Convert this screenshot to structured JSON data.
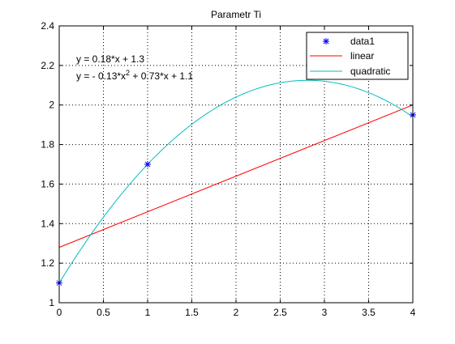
{
  "chart_data": {
    "type": "scatter",
    "title": "Parametr Ti",
    "xlabel": "",
    "ylabel": "",
    "xlim": [
      0,
      4
    ],
    "ylim": [
      1,
      2.4
    ],
    "x_ticks": [
      "0",
      "0.5",
      "1",
      "1.5",
      "2",
      "2.5",
      "3",
      "3.5",
      "4"
    ],
    "y_ticks": [
      "1",
      "1.2",
      "1.4",
      "1.6",
      "1.8",
      "2",
      "2.2",
      "2.4"
    ],
    "grid": true,
    "legend_position": "top-right",
    "series": [
      {
        "name": "data1",
        "kind": "markers",
        "marker": "asterisk",
        "color": "#0000ff",
        "x": [
          0,
          1,
          4
        ],
        "y": [
          1.1,
          1.7,
          1.95
        ]
      },
      {
        "name": "linear",
        "kind": "line",
        "color": "#ff0000",
        "coefficients": [
          0.18,
          1.28
        ],
        "x": [
          0,
          4
        ],
        "y": [
          1.28,
          2.0
        ]
      },
      {
        "name": "quadratic",
        "kind": "line",
        "color": "#00bfbf",
        "coefficients": [
          -0.13,
          0.73,
          1.1
        ],
        "x_range": [
          0,
          4
        ]
      }
    ],
    "annotations": [
      {
        "text": "y = 0.18*x + 1.3"
      },
      {
        "text_before": "y = - 0.13*x",
        "superscript": "2",
        "text_after": " + 0.73*x + 1.1"
      }
    ]
  }
}
